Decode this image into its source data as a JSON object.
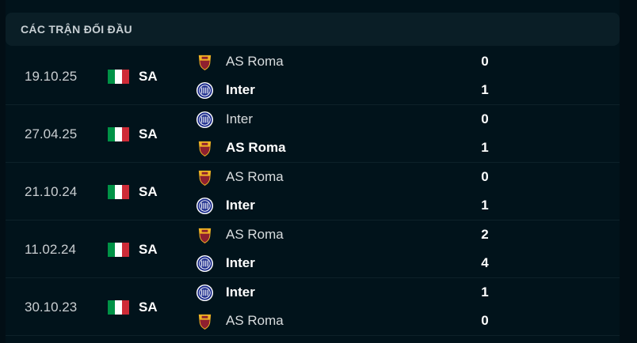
{
  "header": {
    "title": "CÁC TRẬN ĐỐI ĐẦU"
  },
  "colors": {
    "italy_flag": [
      "#009246",
      "#ffffff",
      "#ce2b37"
    ],
    "inter": "#1a2a8c",
    "roma": "#8e1f2f"
  },
  "matches": [
    {
      "date": "19.10.25",
      "league": "SA",
      "flag": "italy-flag-icon",
      "teams": [
        {
          "name": "AS Roma",
          "logo": "as-roma-logo-icon",
          "score": "0",
          "winner": false
        },
        {
          "name": "Inter",
          "logo": "inter-logo-icon",
          "score": "1",
          "winner": true
        }
      ]
    },
    {
      "date": "27.04.25",
      "league": "SA",
      "flag": "italy-flag-icon",
      "teams": [
        {
          "name": "Inter",
          "logo": "inter-logo-icon",
          "score": "0",
          "winner": false
        },
        {
          "name": "AS Roma",
          "logo": "as-roma-logo-icon",
          "score": "1",
          "winner": true
        }
      ]
    },
    {
      "date": "21.10.24",
      "league": "SA",
      "flag": "italy-flag-icon",
      "teams": [
        {
          "name": "AS Roma",
          "logo": "as-roma-logo-icon",
          "score": "0",
          "winner": false
        },
        {
          "name": "Inter",
          "logo": "inter-logo-icon",
          "score": "1",
          "winner": true
        }
      ]
    },
    {
      "date": "11.02.24",
      "league": "SA",
      "flag": "italy-flag-icon",
      "teams": [
        {
          "name": "AS Roma",
          "logo": "as-roma-logo-icon",
          "score": "2",
          "winner": false
        },
        {
          "name": "Inter",
          "logo": "inter-logo-icon",
          "score": "4",
          "winner": true
        }
      ]
    },
    {
      "date": "30.10.23",
      "league": "SA",
      "flag": "italy-flag-icon",
      "teams": [
        {
          "name": "Inter",
          "logo": "inter-logo-icon",
          "score": "1",
          "winner": true
        },
        {
          "name": "AS Roma",
          "logo": "as-roma-logo-icon",
          "score": "0",
          "winner": false
        }
      ]
    }
  ]
}
